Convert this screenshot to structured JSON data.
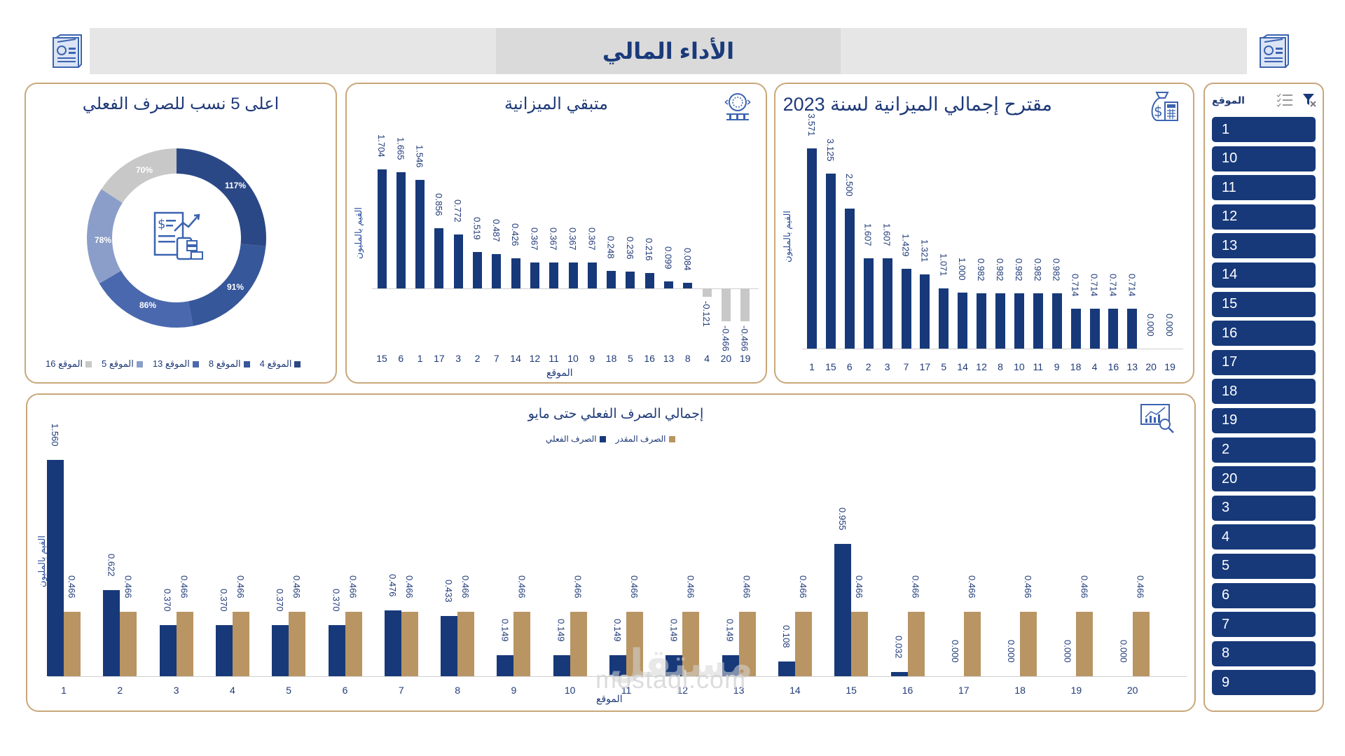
{
  "header": {
    "title": "الأداء المالي",
    "left_icon": "report-document-icon",
    "right_icon": "report-document-icon"
  },
  "colors": {
    "navy": "#17397a",
    "gold": "#b99563",
    "gray": "#c8c8c8",
    "border": "#c9a77a",
    "header_bg": "#e6e6e6"
  },
  "donut_panel": {
    "title": "اعلى 5 نسب للصرف الفعلي",
    "icon": "financial-report-icon",
    "legend": [
      "الموقع 4",
      "الموقع 8",
      "الموقع 13",
      "الموقع 5",
      "الموقع 16"
    ]
  },
  "remaining_panel": {
    "title": "متبقي الميزانية",
    "icon": "budget-bank-icon",
    "ylabel": "القيم بالمليون",
    "xlabel": "الموقع"
  },
  "proposal_panel": {
    "title": "مقترح إجمالي الميزانية لسنة 2023",
    "icon": "money-bag-calculator-icon",
    "ylabel": "القيم بالمليون"
  },
  "actual_panel": {
    "title": "إجمالي الصرف الفعلي حتى مايو",
    "icon": "chart-magnifier-icon",
    "ylabel": "القيم بالمليون",
    "xlabel": "الموقع",
    "legend": [
      "الصرف المقدر",
      "الصرف الفعلي"
    ]
  },
  "slicer": {
    "title": "الموقع",
    "multi_select_icon": "multi-select-icon",
    "clear_filter_icon": "clear-filter-icon",
    "items": [
      "1",
      "10",
      "11",
      "12",
      "13",
      "14",
      "15",
      "16",
      "17",
      "18",
      "19",
      "2",
      "20",
      "3",
      "4",
      "5",
      "6",
      "7",
      "8",
      "9"
    ]
  },
  "watermark": {
    "text": "mostaql.com",
    "arabic": "مستقل"
  },
  "chart_data": [
    {
      "type": "pie",
      "title": "اعلى 5 نسب للصرف الفعلي",
      "categories": [
        "الموقع 4",
        "الموقع 8",
        "الموقع 13",
        "الموقع 5",
        "الموقع 16"
      ],
      "values": [
        117,
        91,
        86,
        78,
        70
      ],
      "labels": [
        "117%",
        "91%",
        "86%",
        "78%",
        "70%"
      ],
      "colors": [
        "#2b4886",
        "#36579a",
        "#4a68ad",
        "#8a9ec9",
        "#c8c8c8"
      ],
      "donut": true,
      "legend_position": "bottom"
    },
    {
      "type": "bar",
      "title": "متبقي الميزانية",
      "xlabel": "الموقع",
      "ylabel": "القيم بالمليون",
      "categories": [
        "15",
        "6",
        "1",
        "17",
        "3",
        "2",
        "7",
        "14",
        "12",
        "11",
        "10",
        "9",
        "18",
        "5",
        "16",
        "13",
        "8",
        "4",
        "20",
        "19"
      ],
      "values": [
        1.704,
        1.665,
        1.546,
        0.856,
        0.772,
        0.519,
        0.487,
        0.426,
        0.367,
        0.367,
        0.367,
        0.367,
        0.248,
        0.236,
        0.216,
        0.099,
        0.084,
        -0.121,
        -0.466,
        -0.466
      ],
      "labels": [
        "1.704",
        "1.665",
        "1.546",
        "0.856",
        "0.772",
        "0.519",
        "0.487",
        "0.426",
        "0.367",
        "0.367",
        "0.367",
        "0.367",
        "0.248",
        "0.236",
        "0.216",
        "0.099",
        "0.084",
        "-0.121",
        "-0.466",
        "-0.466"
      ],
      "grid": false
    },
    {
      "type": "bar",
      "title": "مقترح إجمالي الميزانية لسنة 2023",
      "xlabel": "",
      "ylabel": "القيم بالمليون",
      "categories": [
        "1",
        "15",
        "6",
        "2",
        "3",
        "7",
        "17",
        "5",
        "14",
        "12",
        "8",
        "10",
        "11",
        "9",
        "18",
        "4",
        "16",
        "13",
        "20",
        "19"
      ],
      "values": [
        3.571,
        3.125,
        2.5,
        1.607,
        1.607,
        1.429,
        1.321,
        1.071,
        1.0,
        0.982,
        0.982,
        0.982,
        0.982,
        0.982,
        0.714,
        0.714,
        0.714,
        0.714,
        0.0,
        0.0
      ],
      "labels": [
        "3.571",
        "3.125",
        "2.500",
        "1.607",
        "1.607",
        "1.429",
        "1.321",
        "1.071",
        "1.000",
        "0.982",
        "0.982",
        "0.982",
        "0.982",
        "0.982",
        "0.714",
        "0.714",
        "0.714",
        "0.714",
        "0.000",
        "0.000"
      ],
      "grid": false
    },
    {
      "type": "bar",
      "title": "إجمالي الصرف الفعلي حتى مايو",
      "xlabel": "الموقع",
      "ylabel": "القيم بالمليون",
      "categories": [
        "1",
        "2",
        "3",
        "4",
        "5",
        "6",
        "7",
        "8",
        "9",
        "10",
        "11",
        "12",
        "13",
        "14",
        "15",
        "16",
        "17",
        "18",
        "19",
        "20"
      ],
      "series": [
        {
          "name": "الصرف الفعلي",
          "color": "#17397a",
          "values": [
            1.56,
            0.622,
            0.37,
            0.37,
            0.37,
            0.37,
            0.476,
            0.433,
            0.149,
            0.149,
            0.149,
            0.149,
            0.149,
            0.108,
            0.955,
            0.032,
            0.0,
            0.0,
            0.0,
            0.0
          ],
          "labels": [
            "1.560",
            "0.622",
            "0.370",
            "0.370",
            "0.370",
            "0.370",
            "0.476",
            "0.433",
            "0.149",
            "0.149",
            "0.149",
            "0.149",
            "0.149",
            "0.108",
            "0.955",
            "0.032",
            "0.000",
            "0.000",
            "0.000",
            "0.000"
          ]
        },
        {
          "name": "الصرف المقدر",
          "color": "#b99563",
          "values": [
            0.466,
            0.466,
            0.466,
            0.466,
            0.466,
            0.466,
            0.466,
            0.466,
            0.466,
            0.466,
            0.466,
            0.466,
            0.466,
            0.466,
            0.466,
            0.466,
            0.466,
            0.466,
            0.466,
            0.466
          ],
          "labels": [
            "0.466",
            "0.466",
            "0.466",
            "0.466",
            "0.466",
            "0.466",
            "0.466",
            "0.466",
            "0.466",
            "0.466",
            "0.466",
            "0.466",
            "0.466",
            "0.466",
            "0.466",
            "0.466",
            "0.466",
            "0.466",
            "0.466",
            "0.466"
          ]
        }
      ],
      "legend_position": "top",
      "grid": false
    }
  ]
}
